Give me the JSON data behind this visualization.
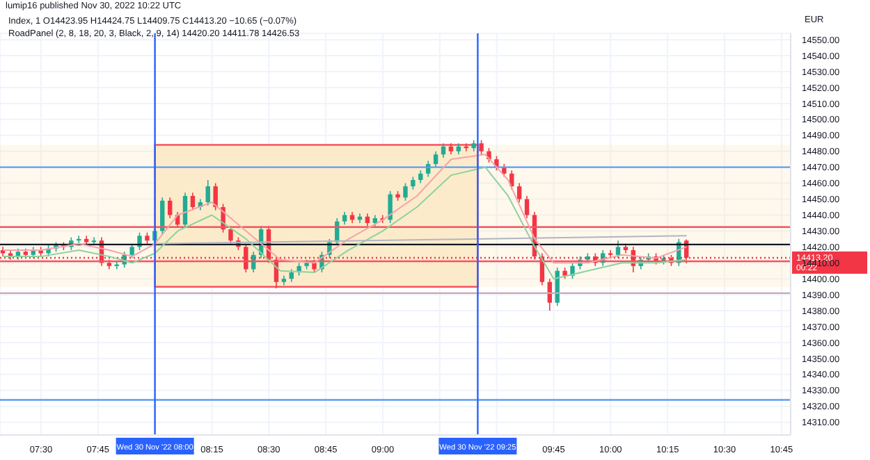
{
  "chart_data": {
    "type": "candlestick",
    "title": "lumip16 published Nov 30, 2022 10:22 UTC",
    "subtitle": "Index, 1  O14423.95 H14424.75 L14409.75 C14413.20 −10.65 (−0.07%)",
    "annotations": [
      "RoadPanel (2, 8, 18, 20, 3, Black, 2, 9, 14)  14420.20  14411.78  14426.53",
      "EUR",
      "00:22"
    ],
    "x": [
      7.3333,
      7.3667,
      7.4,
      7.4333,
      7.4667,
      7.5,
      7.5333,
      7.5667,
      7.6,
      7.6333,
      7.6667,
      7.7,
      7.7333,
      7.7667,
      7.8,
      7.8333,
      7.8667,
      7.9,
      7.9333,
      7.9667,
      8,
      8.0333,
      8.0667,
      8.1,
      8.1333,
      8.1667,
      8.2,
      8.2333,
      8.2667,
      8.3,
      8.3333,
      8.3667,
      8.4,
      8.4333,
      8.4667,
      8.5,
      8.5333,
      8.5667,
      8.6,
      8.6333,
      8.6667,
      8.7,
      8.7333,
      8.7667,
      8.8,
      8.8333,
      8.8667,
      8.9,
      8.9333,
      8.9667,
      9,
      9.0333,
      9.0667,
      9.1,
      9.1333,
      9.1667,
      9.2,
      9.2333,
      9.2667,
      9.3,
      9.3333,
      9.3667,
      9.4,
      9.4333,
      9.4667,
      9.5,
      9.5333,
      9.5667,
      9.6,
      9.6333,
      9.6667,
      9.7,
      9.7333,
      9.7667,
      9.8,
      9.8333,
      9.8667,
      9.9,
      9.9333,
      9.9667,
      10,
      10.0333,
      10.0667,
      10.1,
      10.1333,
      10.1667,
      10.2,
      10.2333,
      10.2667,
      10.3,
      10.3333
    ],
    "ohlc": [
      [
        14418,
        14420,
        14414,
        14416
      ],
      [
        14416,
        14418,
        14412,
        14414
      ],
      [
        14414,
        14419,
        14412,
        14417
      ],
      [
        14417,
        14419,
        14413,
        14415
      ],
      [
        14415,
        14420,
        14413,
        14418
      ],
      [
        14418,
        14420,
        14414,
        14416
      ],
      [
        14416,
        14421,
        14414,
        14419
      ],
      [
        14419,
        14423,
        14417,
        14421
      ],
      [
        14421,
        14423,
        14418,
        14420
      ],
      [
        14420,
        14426,
        14418,
        14424
      ],
      [
        14424,
        14427,
        14422,
        14425
      ],
      [
        14425,
        14427,
        14421,
        14423
      ],
      [
        14423,
        14426,
        14421,
        14424
      ],
      [
        14424,
        14426,
        14408,
        14410
      ],
      [
        14410,
        14412,
        14406,
        14408
      ],
      [
        14408,
        14411,
        14406,
        14409
      ],
      [
        14409,
        14417,
        14407,
        14415
      ],
      [
        14415,
        14422,
        14413,
        14420
      ],
      [
        14420,
        14429,
        14418,
        14427
      ],
      [
        14427,
        14429,
        14422,
        14424
      ],
      [
        14424,
        14432,
        14422,
        14430
      ],
      [
        14430,
        14451,
        14428,
        14449
      ],
      [
        14449,
        14451,
        14438,
        14440
      ],
      [
        14440,
        14442,
        14432,
        14434
      ],
      [
        14434,
        14454,
        14432,
        14452
      ],
      [
        14452,
        14454,
        14443,
        14445
      ],
      [
        14445,
        14450,
        14443,
        14448
      ],
      [
        14448,
        14462,
        14446,
        14458
      ],
      [
        14458,
        14460,
        14443,
        14445
      ],
      [
        14445,
        14447,
        14429,
        14431
      ],
      [
        14431,
        14433,
        14422,
        14424
      ],
      [
        14424,
        14426,
        14418,
        14420
      ],
      [
        14420,
        14422,
        14404,
        14406
      ],
      [
        14406,
        14417,
        14404,
        14415
      ],
      [
        14415,
        14433,
        14413,
        14431
      ],
      [
        14431,
        14433,
        14410,
        14412
      ],
      [
        14412,
        14414,
        14394,
        14398
      ],
      [
        14398,
        14402,
        14396,
        14400
      ],
      [
        14400,
        14406,
        14398,
        14404
      ],
      [
        14404,
        14410,
        14402,
        14408
      ],
      [
        14408,
        14412,
        14406,
        14410
      ],
      [
        14410,
        14412,
        14404,
        14406
      ],
      [
        14406,
        14417,
        14404,
        14415
      ],
      [
        14415,
        14425,
        14413,
        14423
      ],
      [
        14423,
        14438,
        14421,
        14436
      ],
      [
        14436,
        14442,
        14434,
        14440
      ],
      [
        14440,
        14442,
        14435,
        14437
      ],
      [
        14437,
        14441,
        14435,
        14439
      ],
      [
        14439,
        14441,
        14433,
        14435
      ],
      [
        14435,
        14440,
        14433,
        14438
      ],
      [
        14438,
        14440,
        14435,
        14437
      ],
      [
        14437,
        14455,
        14435,
        14453
      ],
      [
        14453,
        14455,
        14449,
        14451
      ],
      [
        14451,
        14460,
        14449,
        14458
      ],
      [
        14458,
        14464,
        14456,
        14462
      ],
      [
        14462,
        14468,
        14460,
        14466
      ],
      [
        14466,
        14474,
        14464,
        14472
      ],
      [
        14472,
        14480,
        14470,
        14478
      ],
      [
        14478,
        14485,
        14476,
        14483
      ],
      [
        14483,
        14485,
        14478,
        14480
      ],
      [
        14480,
        14485,
        14478,
        14483
      ],
      [
        14483,
        14485,
        14480,
        14482
      ],
      [
        14482,
        14487,
        14480,
        14485
      ],
      [
        14485,
        14487,
        14478,
        14480
      ],
      [
        14480,
        14482,
        14473,
        14475
      ],
      [
        14475,
        14477,
        14468,
        14470
      ],
      [
        14470,
        14472,
        14464,
        14466
      ],
      [
        14466,
        14468,
        14456,
        14458
      ],
      [
        14458,
        14460,
        14448,
        14450
      ],
      [
        14450,
        14452,
        14438,
        14440
      ],
      [
        14440,
        14442,
        14412,
        14414
      ],
      [
        14414,
        14416,
        14396,
        14398
      ],
      [
        14398,
        14400,
        14380,
        14385
      ],
      [
        14385,
        14407,
        14383,
        14405
      ],
      [
        14405,
        14407,
        14400,
        14402
      ],
      [
        14402,
        14410,
        14400,
        14408
      ],
      [
        14408,
        14414,
        14406,
        14412
      ],
      [
        14412,
        14416,
        14410,
        14414
      ],
      [
        14414,
        14416,
        14408,
        14410
      ],
      [
        14410,
        14418,
        14408,
        14416
      ],
      [
        14416,
        14418,
        14413,
        14415
      ],
      [
        14415,
        14424,
        14413,
        14420
      ],
      [
        14420,
        14422,
        14416,
        14418
      ],
      [
        14418,
        14420,
        14404,
        14408
      ],
      [
        14408,
        14414,
        14406,
        14412
      ],
      [
        14412,
        14416,
        14410,
        14414
      ],
      [
        14414,
        14416,
        14409,
        14411
      ],
      [
        14411,
        14415,
        14409,
        14413
      ],
      [
        14413,
        14415,
        14408,
        14410
      ],
      [
        14410,
        14425,
        14408,
        14423
      ],
      [
        14423.95,
        14424.75,
        14409.75,
        14413.2
      ]
    ],
    "colors": [
      "#f23645",
      "#f23645",
      "#22ab94",
      "#f23645",
      "#22ab94",
      "#f23645",
      "#22ab94",
      "#22ab94",
      "#f23645",
      "#22ab94",
      "#22ab94",
      "#f23645",
      "#22ab94",
      "#f23645",
      "#f23645",
      "#22ab94",
      "#22ab94",
      "#22ab94",
      "#22ab94",
      "#f23645",
      "#22ab94",
      "#22ab94",
      "#f23645",
      "#f23645",
      "#22ab94",
      "#f23645",
      "#22ab94",
      "#22ab94",
      "#f23645",
      "#f23645",
      "#f23645",
      "#f23645",
      "#f23645",
      "#22ab94",
      "#22ab94",
      "#f23645",
      "#f23645",
      "#22ab94",
      "#22ab94",
      "#22ab94",
      "#22ab94",
      "#f23645",
      "#22ab94",
      "#22ab94",
      "#22ab94",
      "#22ab94",
      "#f23645",
      "#22ab94",
      "#f23645",
      "#22ab94",
      "#f23645",
      "#22ab94",
      "#f23645",
      "#22ab94",
      "#22ab94",
      "#22ab94",
      "#22ab94",
      "#22ab94",
      "#22ab94",
      "#f23645",
      "#22ab94",
      "#f23645",
      "#22ab94",
      "#f23645",
      "#f23645",
      "#f23645",
      "#f23645",
      "#f23645",
      "#f23645",
      "#f23645",
      "#f23645",
      "#f23645",
      "#f23645",
      "#22ab94",
      "#f23645",
      "#22ab94",
      "#22ab94",
      "#22ab94",
      "#f23645",
      "#22ab94",
      "#f23645",
      "#22ab94",
      "#f23645",
      "#f23645",
      "#22ab94",
      "#22ab94",
      "#f23645",
      "#22ab94",
      "#f23645",
      "#22ab94",
      "#f23645"
    ],
    "series": [
      {
        "type": "line",
        "color": "#f5a3a8",
        "x": [
          7.3333,
          7.5,
          7.6667,
          7.8,
          7.9,
          8,
          8.1,
          8.25,
          8.4,
          8.55,
          8.7,
          8.85,
          9,
          9.15,
          9.3,
          9.45,
          9.55,
          9.6667,
          9.75,
          9.9,
          10.05,
          10.2,
          10.3333
        ],
        "values": [
          14418,
          14418,
          14422,
          14418,
          14414,
          14422,
          14440,
          14448,
          14430,
          14412,
          14410,
          14425,
          14437,
          14452,
          14475,
          14478,
          14462,
          14425,
          14410,
          14410,
          14415,
          14413,
          14420
        ]
      },
      {
        "type": "line",
        "color": "#8fd19e",
        "x": [
          7.3333,
          7.5,
          7.6667,
          7.8,
          7.9,
          8,
          8.1,
          8.25,
          8.4,
          8.55,
          8.7,
          8.85,
          9,
          9.15,
          9.3,
          9.45,
          9.55,
          9.6667,
          9.75,
          9.9,
          10.05,
          10.2,
          10.3333
        ],
        "values": [
          14414,
          14414,
          14418,
          14414,
          14410,
          14416,
          14430,
          14440,
          14425,
          14405,
          14404,
          14418,
          14430,
          14445,
          14465,
          14470,
          14452,
          14420,
          14400,
          14405,
          14410,
          14410,
          14412
        ]
      },
      {
        "type": "line",
        "color": "#b2b5be",
        "x": [
          8,
          10.3333
        ],
        "values": [
          14422,
          14427
        ]
      }
    ],
    "ref_lines": [
      {
        "axis": "y",
        "value": 14470,
        "color": "#5b9cf6"
      },
      {
        "axis": "y",
        "value": 14432.5,
        "color": "#f7525f"
      },
      {
        "axis": "y",
        "value": 14421.5,
        "color": "#131722"
      },
      {
        "axis": "y",
        "value": 14411,
        "color": "#f7525f"
      },
      {
        "axis": "y",
        "value": 14391,
        "color": "#c9a6bd"
      },
      {
        "axis": "y",
        "value": 14324,
        "color": "#5b9cf6"
      },
      {
        "axis": "y",
        "value": 14413.2,
        "label": "14413.20",
        "color": "#f23645",
        "line_style": "dotted"
      },
      {
        "axis": "x",
        "value": 8,
        "label": "Wed 30 Nov '22  08:00",
        "color": "#2962ff"
      },
      {
        "axis": "x",
        "value": 9.4167,
        "label": "Wed 30 Nov '22  09:25",
        "color": "#2962ff"
      }
    ],
    "bands": [
      {
        "axis": "x",
        "from": 8,
        "to": 9.4167,
        "color": "#fbe9c4"
      },
      {
        "axis": "y",
        "from": 14395,
        "to": 14484,
        "color": "#fbe9c4"
      }
    ],
    "xlim": [
      7.32,
      10.79
    ],
    "xticks": [
      {
        "value": 7.5,
        "label": "07:30"
      },
      {
        "value": 7.75,
        "label": "07:45"
      },
      {
        "value": 8,
        "label": null
      },
      {
        "value": 8.25,
        "label": "08:15"
      },
      {
        "value": 8.5,
        "label": "08:30"
      },
      {
        "value": 8.75,
        "label": "08:45"
      },
      {
        "value": 9,
        "label": "09:00"
      },
      {
        "value": 9.25,
        "label": null
      },
      {
        "value": 9.5,
        "label": null
      },
      {
        "value": 9.75,
        "label": "09:45"
      },
      {
        "value": 10,
        "label": "10:00"
      },
      {
        "value": 10.25,
        "label": "10:15"
      },
      {
        "value": 10.5,
        "label": "10:30"
      },
      {
        "value": 10.75,
        "label": "10:45"
      }
    ],
    "ylim": [
      14302,
      14554
    ],
    "yticks": [
      {
        "value": 14310,
        "label": "14310.00"
      },
      {
        "value": 14320,
        "label": "14320.00"
      },
      {
        "value": 14330,
        "label": "14330.00"
      },
      {
        "value": 14340,
        "label": "14340.00"
      },
      {
        "value": 14350,
        "label": "14350.00"
      },
      {
        "value": 14360,
        "label": "14360.00"
      },
      {
        "value": 14370,
        "label": "14370.00"
      },
      {
        "value": 14380,
        "label": "14380.00"
      },
      {
        "value": 14390,
        "label": "14390.00"
      },
      {
        "value": 14400,
        "label": "14400.00"
      },
      {
        "value": 14410,
        "label": "14410.00"
      },
      {
        "value": 14420,
        "label": "14420.00"
      },
      {
        "value": 14430,
        "label": "14430.00"
      },
      {
        "value": 14440,
        "label": "14440.00"
      },
      {
        "value": 14450,
        "label": "14450.00"
      },
      {
        "value": 14460,
        "label": "14460.00"
      },
      {
        "value": 14470,
        "label": "14470.00"
      },
      {
        "value": 14480,
        "label": "14480.00"
      },
      {
        "value": 14490,
        "label": "14490.00"
      },
      {
        "value": 14500,
        "label": "14500.00"
      },
      {
        "value": 14510,
        "label": "14510.00"
      },
      {
        "value": 14520,
        "label": "14520.00"
      },
      {
        "value": 14530,
        "label": "14530.00"
      },
      {
        "value": 14540,
        "label": "14540.00"
      },
      {
        "value": 14550,
        "label": "14550.00"
      }
    ],
    "grid": true
  }
}
